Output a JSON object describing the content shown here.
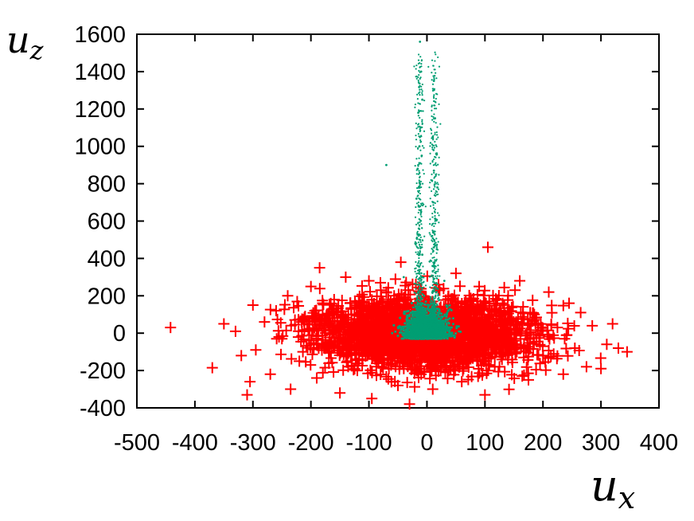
{
  "chart_data": {
    "type": "scatter",
    "title": "",
    "xlabel": "u_x",
    "ylabel": "u_z",
    "xlabel_main": "u",
    "xlabel_sub": "x",
    "ylabel_main": "u",
    "ylabel_sub": "z",
    "xlim": [
      -500,
      400
    ],
    "ylim": [
      -400,
      1600
    ],
    "xticks": [
      -500,
      -400,
      -300,
      -200,
      -100,
      0,
      100,
      200,
      300,
      400
    ],
    "xtick_labels": [
      "-500",
      "-400",
      "-300",
      "-200",
      "-100",
      "0",
      "100",
      "200",
      "300",
      "400"
    ],
    "yticks": [
      -400,
      -200,
      0,
      200,
      400,
      600,
      800,
      1000,
      1200,
      1400,
      1600
    ],
    "ytick_labels": [
      "-400",
      "-200",
      "0",
      "200",
      "400",
      "600",
      "800",
      "1000",
      "1200",
      "1400",
      "1600"
    ],
    "grid": false,
    "legend": "none",
    "series": [
      {
        "marker": "plus",
        "color": "#ff0000",
        "points": [
          [
            -442,
            30
          ],
          [
            -370,
            -185
          ],
          [
            -350,
            50
          ],
          [
            -330,
            10
          ],
          [
            -320,
            -120
          ],
          [
            -310,
            -330
          ],
          [
            -305,
            -260
          ],
          [
            -300,
            150
          ],
          [
            -295,
            -90
          ],
          [
            -280,
            60
          ],
          [
            -270,
            -220
          ],
          [
            -260,
            120
          ],
          [
            -250,
            -30
          ],
          [
            -240,
            200
          ],
          [
            -235,
            -300
          ],
          [
            -220,
            -150
          ],
          [
            -210,
            90
          ],
          [
            -200,
            250
          ],
          [
            -190,
            -240
          ],
          [
            -185,
            350
          ],
          [
            -175,
            -60
          ],
          [
            -160,
            180
          ],
          [
            -150,
            -320
          ],
          [
            -140,
            300
          ],
          [
            -130,
            40
          ],
          [
            -120,
            -200
          ],
          [
            -110,
            140
          ],
          [
            -100,
            280
          ],
          [
            -95,
            -350
          ],
          [
            -80,
            -100
          ],
          [
            -70,
            220
          ],
          [
            -60,
            60
          ],
          [
            -50,
            -280
          ],
          [
            -45,
            380
          ],
          [
            -35,
            -50
          ],
          [
            -30,
            -380
          ],
          [
            -20,
            150
          ],
          [
            -10,
            -220
          ],
          [
            0,
            80
          ],
          [
            10,
            -300
          ],
          [
            20,
            260
          ],
          [
            30,
            -120
          ],
          [
            40,
            20
          ],
          [
            50,
            320
          ],
          [
            60,
            -260
          ],
          [
            70,
            120
          ],
          [
            80,
            -40
          ],
          [
            90,
            250
          ],
          [
            100,
            -330
          ],
          [
            105,
            460
          ],
          [
            115,
            60
          ],
          [
            125,
            -180
          ],
          [
            140,
            200
          ],
          [
            150,
            -60
          ],
          [
            160,
            280
          ],
          [
            175,
            -250
          ],
          [
            185,
            100
          ],
          [
            200,
            -120
          ],
          [
            210,
            220
          ],
          [
            225,
            30
          ],
          [
            235,
            -220
          ],
          [
            245,
            160
          ],
          [
            255,
            -80
          ],
          [
            265,
            110
          ],
          [
            275,
            -180
          ],
          [
            285,
            40
          ],
          [
            300,
            -190
          ],
          [
            310,
            -60
          ],
          [
            320,
            50
          ],
          [
            330,
            -80
          ],
          [
            345,
            -100
          ]
        ]
      },
      {
        "marker": "dot",
        "color": "#009e73",
        "points": [
          [
            -12,
            1560
          ],
          [
            -10,
            1400
          ],
          [
            -8,
            1250
          ],
          [
            -15,
            1180
          ],
          [
            -11,
            1100
          ],
          [
            -13,
            1000
          ],
          [
            -9,
            950
          ],
          [
            -16,
            880
          ],
          [
            -12,
            800
          ],
          [
            -18,
            720
          ],
          [
            -10,
            650
          ],
          [
            -14,
            560
          ],
          [
            -20,
            480
          ],
          [
            -8,
            420
          ],
          [
            -15,
            360
          ],
          [
            12,
            1350
          ],
          [
            14,
            1150
          ],
          [
            10,
            1050
          ],
          [
            16,
            960
          ],
          [
            12,
            870
          ],
          [
            18,
            780
          ],
          [
            11,
            700
          ],
          [
            15,
            610
          ],
          [
            9,
            520
          ],
          [
            17,
            450
          ],
          [
            13,
            380
          ],
          [
            -70,
            900
          ],
          [
            -40,
            300
          ],
          [
            30,
            280
          ],
          [
            -5,
            200
          ],
          [
            5,
            150
          ],
          [
            -30,
            100
          ],
          [
            25,
            90
          ],
          [
            0,
            40
          ],
          [
            -45,
            30
          ],
          [
            40,
            20
          ],
          [
            -20,
            -20
          ],
          [
            20,
            -10
          ],
          [
            0,
            -30
          ],
          [
            -60,
            0
          ],
          [
            55,
            10
          ]
        ]
      }
    ]
  }
}
